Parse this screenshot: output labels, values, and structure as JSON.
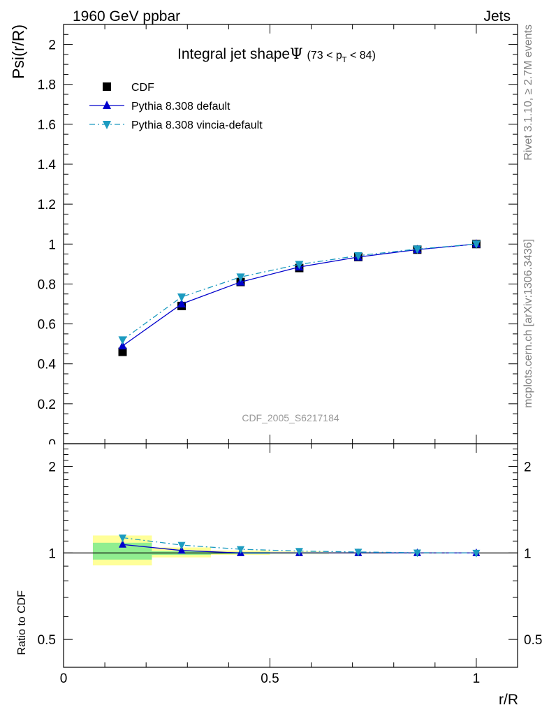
{
  "header": {
    "left": "1960 GeV ppbar",
    "right": "Jets"
  },
  "side_labels": {
    "top": "Rivet 3.1.10, ≥ 2.7M events",
    "bottom": "mcplots.cern.ch [arXiv:1306.3436]"
  },
  "chart_data": [
    {
      "type": "line",
      "title_main": "Integral jet shape",
      "title_symbol": "Ψ",
      "title_cond_open": "(73 < p",
      "title_cond_sub": "T",
      "title_cond_close": " < 84)",
      "ylabel": "Psi(r/R)",
      "watermark": "CDF_2005_S6217184",
      "xlim": [
        0,
        1.1
      ],
      "ylim": [
        0,
        2.1
      ],
      "yticks": [
        "0",
        "0.2",
        "0.4",
        "0.6",
        "0.8",
        "1",
        "1.2",
        "1.4",
        "1.6",
        "1.8",
        "2"
      ],
      "x": [
        0.143,
        0.286,
        0.429,
        0.571,
        0.714,
        0.857,
        1.0
      ],
      "series": [
        {
          "name": "CDF",
          "marker": "square",
          "color": "#000000",
          "values": [
            0.46,
            0.69,
            0.81,
            0.88,
            0.935,
            0.972,
            1.0
          ]
        },
        {
          "name": "Pythia 8.308 default",
          "marker": "triangle-up",
          "color": "#0000cc",
          "dash": "solid",
          "values": [
            0.49,
            0.7,
            0.81,
            0.885,
            0.935,
            0.972,
            1.0
          ]
        },
        {
          "name": "Pythia 8.308 vincia-default",
          "marker": "triangle-down",
          "color": "#1c9bc0",
          "dash": "dashdot",
          "values": [
            0.52,
            0.735,
            0.835,
            0.898,
            0.942,
            0.975,
            1.0
          ]
        }
      ],
      "legend": "top-left",
      "grid": false
    },
    {
      "type": "line",
      "ylabel": "Ratio to CDF",
      "xlabel": "r/R",
      "yscale": "log",
      "ylim": [
        0.4,
        2.4
      ],
      "yticks": [
        "0.5",
        "1",
        "2"
      ],
      "xticks": [
        "0",
        "0.5",
        "1"
      ],
      "x": [
        0.143,
        0.286,
        0.429,
        0.571,
        0.714,
        0.857,
        1.0
      ],
      "bands": {
        "bins": [
          [
            0.071,
            0.214
          ],
          [
            0.214,
            0.357
          ],
          [
            0.357,
            0.5
          ],
          [
            0.5,
            0.643
          ],
          [
            0.643,
            0.786
          ],
          [
            0.786,
            0.929
          ],
          [
            0.929,
            1.07
          ]
        ],
        "stat": [
          [
            0.948,
            1.085
          ],
          [
            0.985,
            1.015
          ],
          [
            0.992,
            1.008
          ],
          [
            0.995,
            1.005
          ],
          [
            0.997,
            1.003
          ],
          [
            0.998,
            1.002
          ],
          [
            0.999,
            1.001
          ]
        ],
        "total": [
          [
            0.905,
            1.15
          ],
          [
            0.965,
            1.045
          ],
          [
            0.985,
            1.02
          ],
          [
            0.99,
            1.012
          ],
          [
            0.993,
            1.008
          ],
          [
            0.995,
            1.005
          ],
          [
            0.998,
            1.002
          ]
        ],
        "stat_color": "#90ee90",
        "total_color": "#ffff99"
      },
      "series": [
        {
          "name": "Pythia 8.308 default",
          "marker": "triangle-up",
          "color": "#0000cc",
          "dash": "solid",
          "values": [
            1.07,
            1.02,
            1.0,
            1.0,
            1.0,
            1.0,
            1.0
          ]
        },
        {
          "name": "Pythia 8.308 vincia-default",
          "marker": "triangle-down",
          "color": "#1c9bc0",
          "dash": "dashdot",
          "values": [
            1.13,
            1.065,
            1.03,
            1.015,
            1.008,
            1.002,
            1.0
          ]
        }
      ]
    }
  ]
}
